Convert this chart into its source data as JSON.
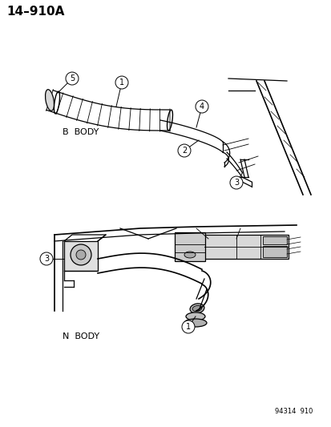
{
  "title": "14–910A",
  "diagram_label_top": "B  BODY",
  "diagram_label_bottom": "N  BODY",
  "footer": "94314  910",
  "bg_color": "#ffffff",
  "line_color": "#000000",
  "font_size_title": 11,
  "font_size_labels": 8,
  "font_size_footer": 6,
  "font_size_callout": 7
}
